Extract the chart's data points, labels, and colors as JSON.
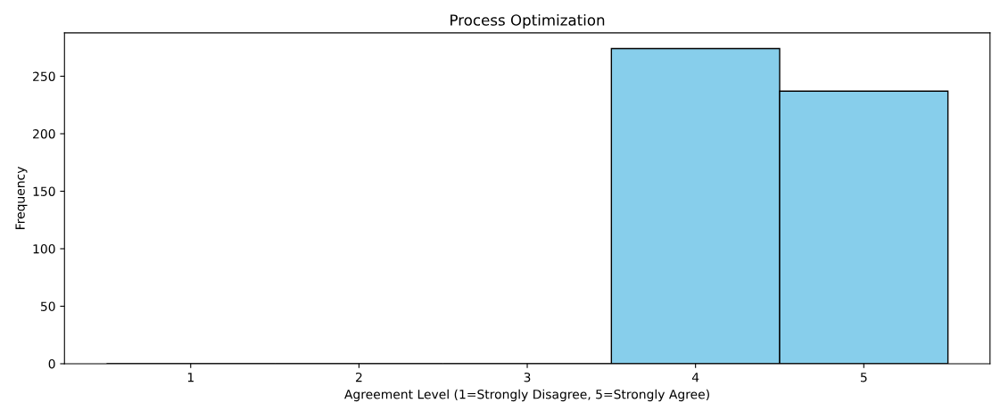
{
  "chart_data": {
    "type": "histogram",
    "title": "Process Optimization",
    "xlabel": "Agreement Level (1=Strongly Disagree, 5=Strongly Agree)",
    "ylabel": "Frequency",
    "bins": [
      0.5,
      1.5,
      2.5,
      3.5,
      4.5,
      5.5
    ],
    "values": [
      0,
      0,
      0,
      274,
      237
    ],
    "color": "#87ceeb",
    "xlim": [
      0.25,
      5.75
    ],
    "xticks": [
      1,
      2,
      3,
      4,
      5
    ],
    "ylim": [
      0,
      287.7
    ],
    "yticks": [
      0,
      50,
      100,
      150,
      200,
      250
    ],
    "grid": false
  }
}
